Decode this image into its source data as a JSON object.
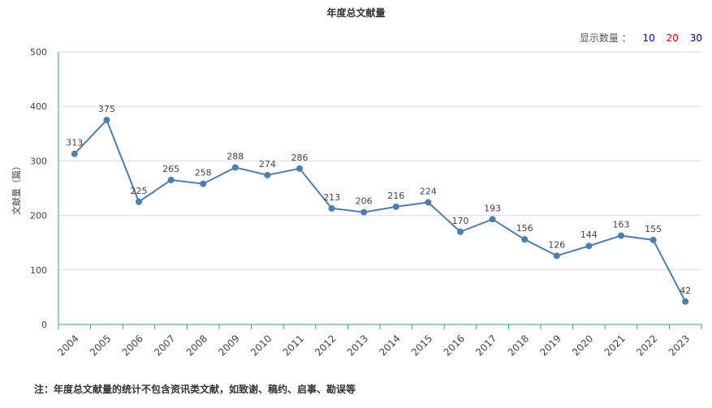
{
  "chart_title": "年度总文献量",
  "display_count": {
    "label": "显示数量 ：",
    "options": [
      {
        "label": "10",
        "color": "#0000cc"
      },
      {
        "label": "20",
        "color": "#cc0000"
      },
      {
        "label": "30",
        "color": "#000080"
      }
    ]
  },
  "note": "注：年度总文献量的统计不包含资讯类文献，如致谢、稿约、启事、勘误等",
  "chart_data": {
    "type": "line",
    "ylabel": "文献量（篇）",
    "xlabel": "",
    "categories": [
      "2004",
      "2005",
      "2006",
      "2007",
      "2008",
      "2009",
      "2010",
      "2011",
      "2012",
      "2013",
      "2014",
      "2015",
      "2016",
      "2017",
      "2018",
      "2019",
      "2020",
      "2021",
      "2022",
      "2023"
    ],
    "values": [
      313,
      375,
      225,
      265,
      258,
      288,
      274,
      286,
      213,
      206,
      216,
      224,
      170,
      193,
      156,
      126,
      144,
      163,
      155,
      42
    ],
    "ylim": [
      0,
      500
    ],
    "yticks": [
      0,
      100,
      200,
      300,
      400,
      500
    ],
    "grid": true,
    "legend": "none",
    "line_color": "#4a7fb0",
    "axis_color": "#2a9d9d"
  }
}
